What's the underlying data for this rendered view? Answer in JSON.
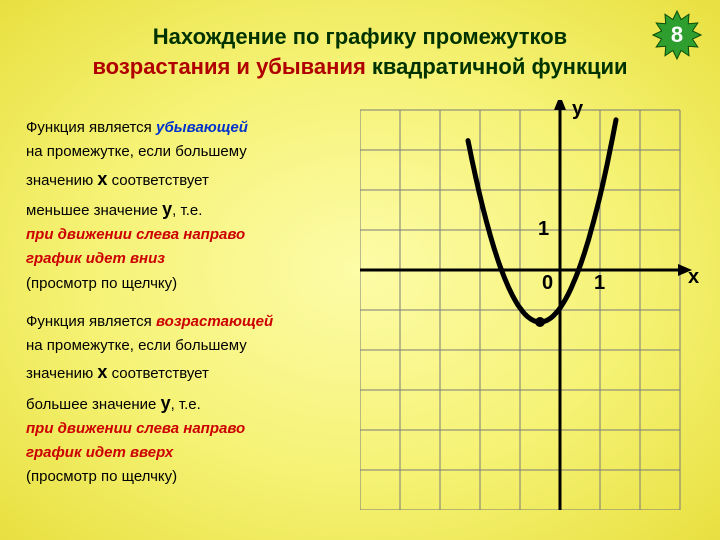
{
  "badge": {
    "number": "8",
    "fill": "#2e9e2e",
    "star_points": 12
  },
  "title": {
    "line1": "Нахождение по графику промежутков",
    "line2_a": "возрастания и убывания",
    "line2_b": " квадратичной функции"
  },
  "block1": {
    "p1a": "Функция является ",
    "p1b": "убывающей",
    "p2a": "на промежутке, если большему",
    "p3a": "значению ",
    "p3x": "х",
    "p3b": " соответствует",
    "p4a": "меньшее значение ",
    "p4y": "у",
    "p4b": ", т.е.",
    "red1": "при движении слева направо",
    "red2": "график идет вниз",
    "p5": "(просмотр по щелчку)"
  },
  "block2": {
    "p1a": "Функция является ",
    "p1b": "возрастающей",
    "p2a": "на промежутке, если большему",
    "p3a": "значению ",
    "p3x": "х",
    "p3b": " соответствует",
    "p4a": "большее значение ",
    "p4y": "у",
    "p4b": ", т.е.",
    "red1": "при движении слева направо",
    "red2": "график идет вверх",
    "p5": "(просмотр по щелчку)"
  },
  "chart": {
    "cell": 40,
    "cols": 8,
    "rows": 10,
    "origin_col": 5,
    "origin_row": 4,
    "grid_color": "#7a7a7a",
    "axis_color": "#000000",
    "curve_color": "#000000",
    "curve_width": 5,
    "y_label": "у",
    "x_label": "х",
    "tick_one": "1",
    "zero": "0",
    "parabola": {
      "vertex_x_units": -0.5,
      "vertex_y_units": -1.3,
      "a": 1.4,
      "x_from": -2.3,
      "x_to": 1.4
    }
  },
  "colors": {
    "title_green": "#003300",
    "title_red": "#b00000",
    "blue": "#0033cc",
    "red": "#cc0000"
  }
}
